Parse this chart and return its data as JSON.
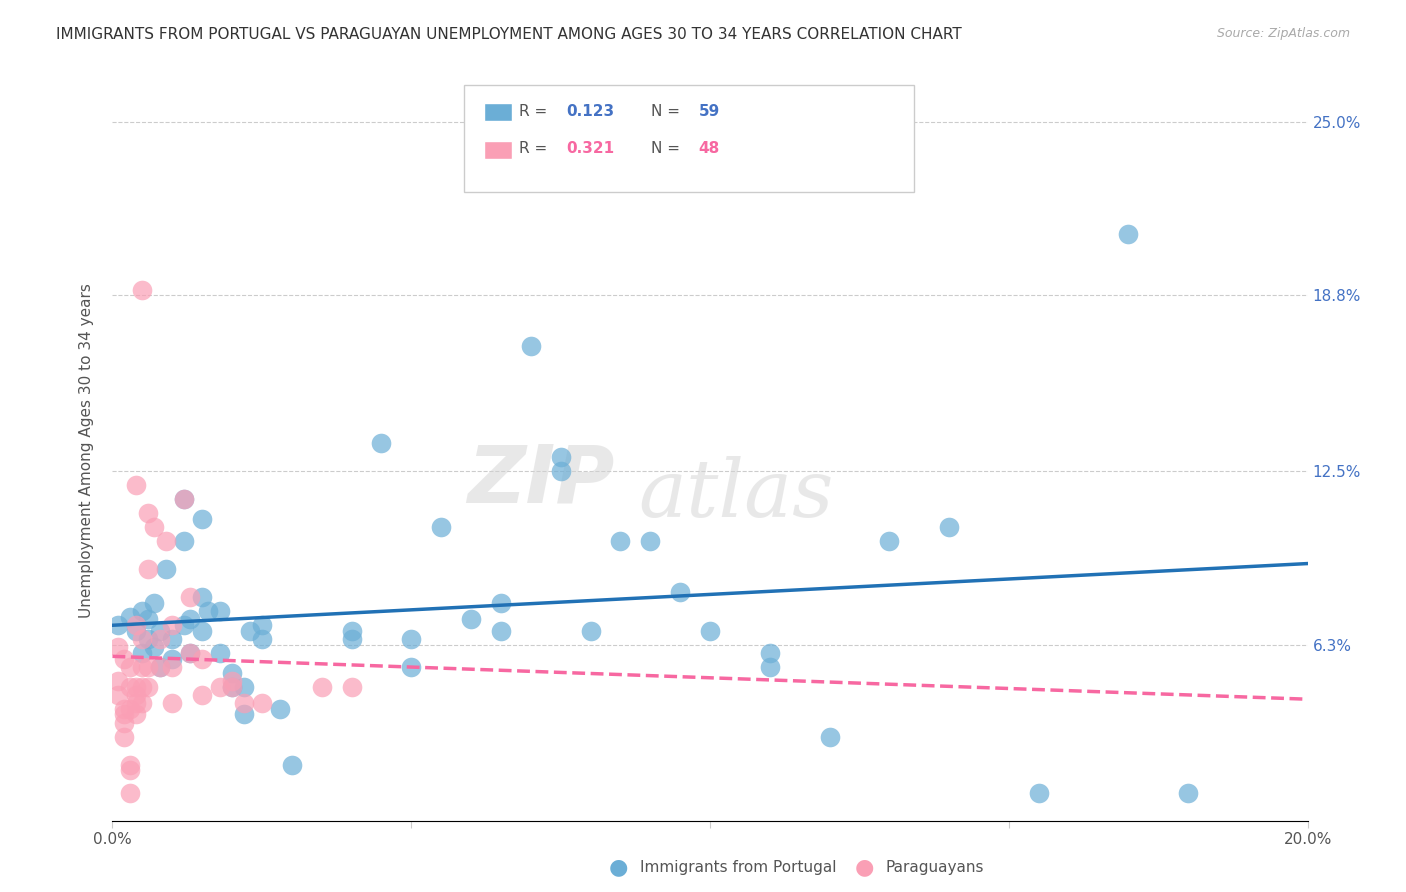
{
  "title": "IMMIGRANTS FROM PORTUGAL VS PARAGUAYAN UNEMPLOYMENT AMONG AGES 30 TO 34 YEARS CORRELATION CHART",
  "source": "Source: ZipAtlas.com",
  "ylabel": "Unemployment Among Ages 30 to 34 years",
  "xlim": [
    0.0,
    0.2
  ],
  "ylim": [
    0.0,
    0.265
  ],
  "ytick_labels_right": [
    "6.3%",
    "12.5%",
    "18.8%",
    "25.0%"
  ],
  "ytick_values_right": [
    0.063,
    0.125,
    0.188,
    0.25
  ],
  "color_blue": "#6baed6",
  "color_pink": "#fa9fb5",
  "color_blue_line": "#2171b5",
  "color_pink_line": "#f768a1",
  "watermark_zip": "ZIP",
  "watermark_atlas": "atlas",
  "blue_scatter": [
    [
      0.001,
      0.07
    ],
    [
      0.003,
      0.073
    ],
    [
      0.004,
      0.068
    ],
    [
      0.005,
      0.06
    ],
    [
      0.005,
      0.075
    ],
    [
      0.006,
      0.065
    ],
    [
      0.006,
      0.072
    ],
    [
      0.007,
      0.062
    ],
    [
      0.007,
      0.078
    ],
    [
      0.008,
      0.055
    ],
    [
      0.008,
      0.068
    ],
    [
      0.009,
      0.09
    ],
    [
      0.01,
      0.058
    ],
    [
      0.01,
      0.065
    ],
    [
      0.012,
      0.1
    ],
    [
      0.012,
      0.07
    ],
    [
      0.012,
      0.115
    ],
    [
      0.013,
      0.072
    ],
    [
      0.013,
      0.06
    ],
    [
      0.015,
      0.108
    ],
    [
      0.015,
      0.08
    ],
    [
      0.015,
      0.068
    ],
    [
      0.016,
      0.075
    ],
    [
      0.018,
      0.075
    ],
    [
      0.018,
      0.06
    ],
    [
      0.02,
      0.053
    ],
    [
      0.02,
      0.048
    ],
    [
      0.022,
      0.038
    ],
    [
      0.022,
      0.048
    ],
    [
      0.023,
      0.068
    ],
    [
      0.025,
      0.07
    ],
    [
      0.025,
      0.065
    ],
    [
      0.028,
      0.04
    ],
    [
      0.03,
      0.02
    ],
    [
      0.04,
      0.065
    ],
    [
      0.04,
      0.068
    ],
    [
      0.045,
      0.135
    ],
    [
      0.05,
      0.065
    ],
    [
      0.05,
      0.055
    ],
    [
      0.055,
      0.105
    ],
    [
      0.06,
      0.072
    ],
    [
      0.065,
      0.078
    ],
    [
      0.065,
      0.068
    ],
    [
      0.07,
      0.17
    ],
    [
      0.075,
      0.13
    ],
    [
      0.075,
      0.125
    ],
    [
      0.08,
      0.068
    ],
    [
      0.085,
      0.1
    ],
    [
      0.09,
      0.1
    ],
    [
      0.095,
      0.082
    ],
    [
      0.1,
      0.068
    ],
    [
      0.11,
      0.06
    ],
    [
      0.11,
      0.055
    ],
    [
      0.12,
      0.03
    ],
    [
      0.13,
      0.1
    ],
    [
      0.14,
      0.105
    ],
    [
      0.155,
      0.01
    ],
    [
      0.17,
      0.21
    ],
    [
      0.18,
      0.01
    ]
  ],
  "pink_scatter": [
    [
      0.001,
      0.045
    ],
    [
      0.001,
      0.062
    ],
    [
      0.001,
      0.05
    ],
    [
      0.002,
      0.058
    ],
    [
      0.002,
      0.04
    ],
    [
      0.002,
      0.038
    ],
    [
      0.002,
      0.035
    ],
    [
      0.002,
      0.03
    ],
    [
      0.003,
      0.055
    ],
    [
      0.003,
      0.048
    ],
    [
      0.003,
      0.04
    ],
    [
      0.003,
      0.02
    ],
    [
      0.003,
      0.018
    ],
    [
      0.003,
      0.01
    ],
    [
      0.004,
      0.12
    ],
    [
      0.004,
      0.07
    ],
    [
      0.004,
      0.048
    ],
    [
      0.004,
      0.045
    ],
    [
      0.004,
      0.042
    ],
    [
      0.004,
      0.038
    ],
    [
      0.005,
      0.19
    ],
    [
      0.005,
      0.065
    ],
    [
      0.005,
      0.055
    ],
    [
      0.005,
      0.048
    ],
    [
      0.005,
      0.042
    ],
    [
      0.006,
      0.11
    ],
    [
      0.006,
      0.09
    ],
    [
      0.006,
      0.055
    ],
    [
      0.006,
      0.048
    ],
    [
      0.007,
      0.105
    ],
    [
      0.008,
      0.065
    ],
    [
      0.008,
      0.055
    ],
    [
      0.009,
      0.1
    ],
    [
      0.01,
      0.07
    ],
    [
      0.01,
      0.055
    ],
    [
      0.01,
      0.042
    ],
    [
      0.012,
      0.115
    ],
    [
      0.013,
      0.08
    ],
    [
      0.013,
      0.06
    ],
    [
      0.015,
      0.058
    ],
    [
      0.015,
      0.045
    ],
    [
      0.018,
      0.048
    ],
    [
      0.02,
      0.05
    ],
    [
      0.02,
      0.048
    ],
    [
      0.022,
      0.042
    ],
    [
      0.025,
      0.042
    ],
    [
      0.035,
      0.048
    ],
    [
      0.04,
      0.048
    ]
  ]
}
